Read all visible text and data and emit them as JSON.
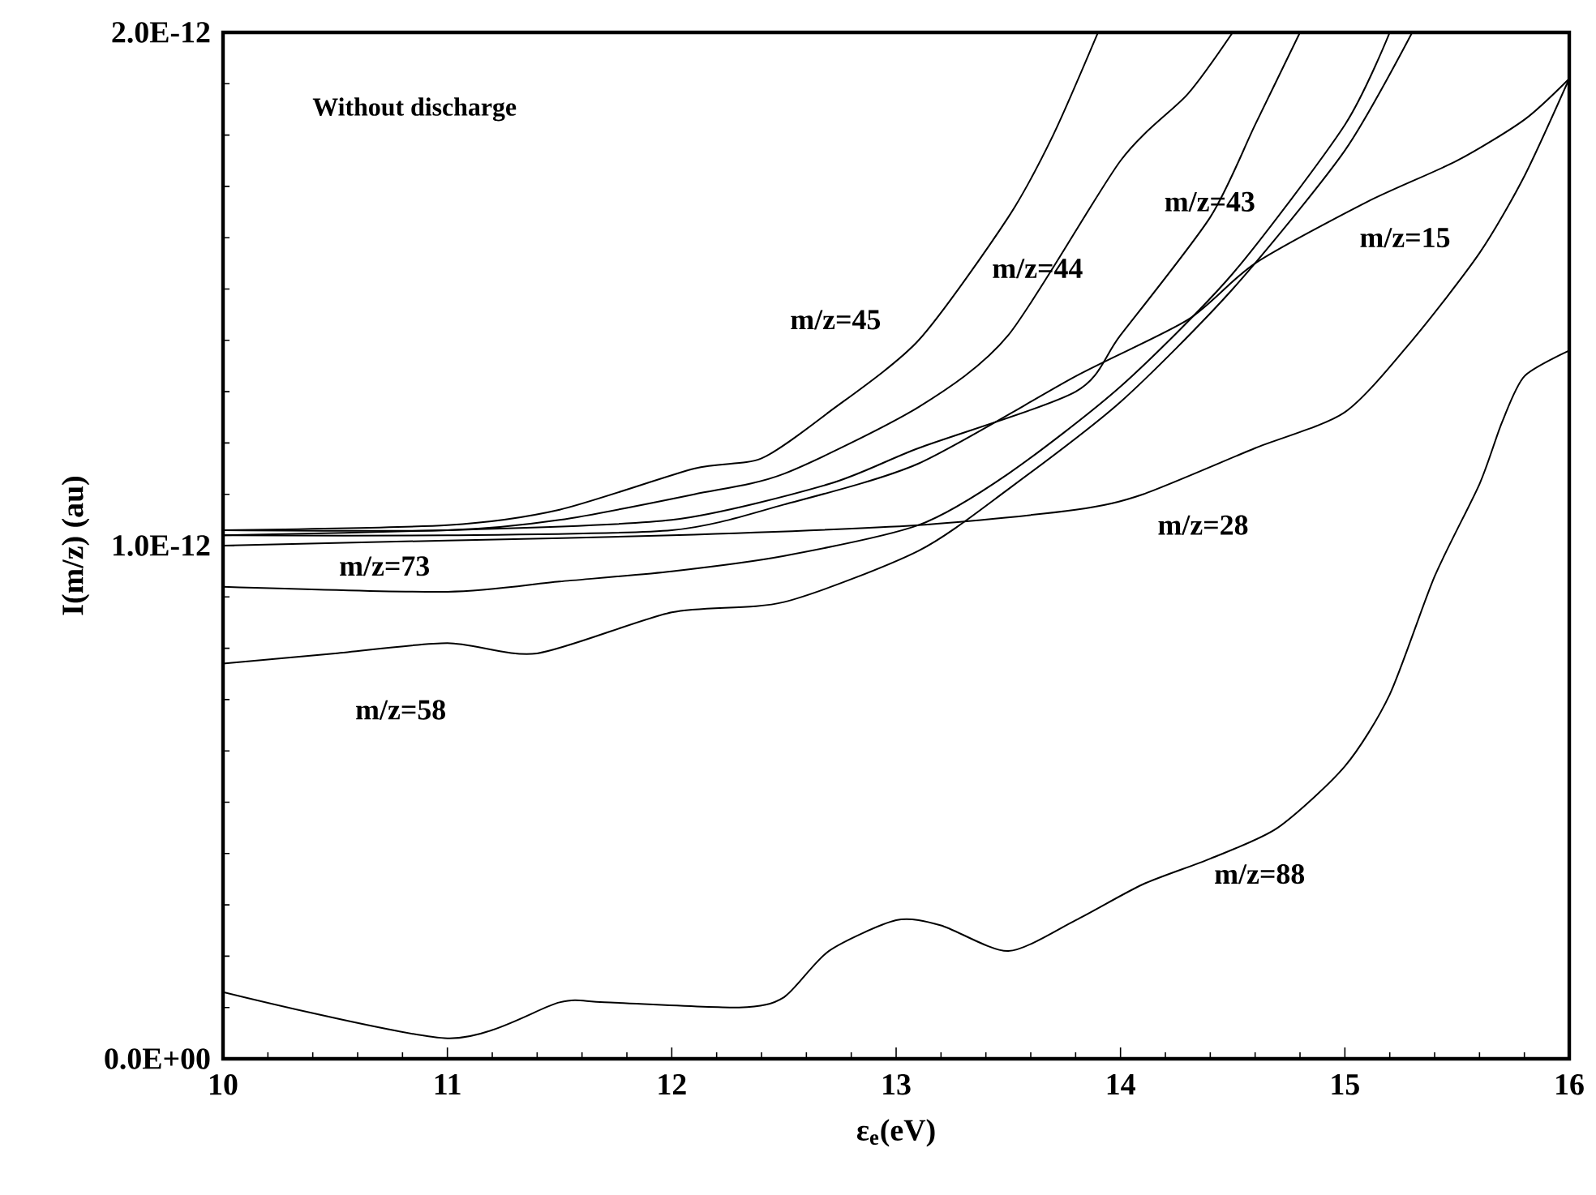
{
  "chart_data": {
    "type": "line",
    "xlabel": "ε$_{e}$(eV)",
    "ylabel": "I(m/z) (au)",
    "xlim": [
      10,
      16
    ],
    "ylim": [
      0,
      2e-12
    ],
    "xticks": [
      10,
      11,
      12,
      13,
      14,
      15,
      16,
      {
        "value": 10.2,
        "label": null
      },
      {
        "value": 10.4,
        "label": null
      },
      {
        "value": 10.6,
        "label": null
      },
      {
        "value": 10.8,
        "label": null
      },
      {
        "value": 11.2,
        "label": null
      },
      {
        "value": 11.4,
        "label": null
      },
      {
        "value": 11.6,
        "label": null
      },
      {
        "value": 11.8,
        "label": null
      },
      {
        "value": 12.2,
        "label": null
      },
      {
        "value": 12.4,
        "label": null
      },
      {
        "value": 12.6,
        "label": null
      },
      {
        "value": 12.8,
        "label": null
      },
      {
        "value": 13.2,
        "label": null
      },
      {
        "value": 13.4,
        "label": null
      },
      {
        "value": 13.6,
        "label": null
      },
      {
        "value": 13.8,
        "label": null
      },
      {
        "value": 14.2,
        "label": null
      },
      {
        "value": 14.4,
        "label": null
      },
      {
        "value": 14.6,
        "label": null
      },
      {
        "value": 14.8,
        "label": null
      },
      {
        "value": 15.2,
        "label": null
      },
      {
        "value": 15.4,
        "label": null
      },
      {
        "value": 15.6,
        "label": null
      },
      {
        "value": 15.8,
        "label": null
      }
    ],
    "yticks": [
      {
        "value": 0,
        "label": "0.0E+00"
      },
      {
        "value": 1e-12,
        "label": "1.0E-12"
      },
      {
        "value": 2e-12,
        "label": "2.0E-12"
      },
      {
        "value": 1e-13,
        "label": null
      },
      {
        "value": 2e-13,
        "label": null
      },
      {
        "value": 3e-13,
        "label": null
      },
      {
        "value": 4e-13,
        "label": null
      },
      {
        "value": 5e-13,
        "label": null
      },
      {
        "value": 6e-13,
        "label": null
      },
      {
        "value": 7e-13,
        "label": null
      },
      {
        "value": 8e-13,
        "label": null
      },
      {
        "value": 9e-13,
        "label": null
      },
      {
        "value": 1.1e-12,
        "label": null
      },
      {
        "value": 1.2e-12,
        "label": null
      },
      {
        "value": 1.3e-12,
        "label": null
      },
      {
        "value": 1.4e-12,
        "label": null
      },
      {
        "value": 1.5e-12,
        "label": null
      },
      {
        "value": 1.6e-12,
        "label": null
      },
      {
        "value": 1.7e-12,
        "label": null
      },
      {
        "value": 1.8e-12,
        "label": null
      },
      {
        "value": 1.9e-12,
        "label": null
      }
    ],
    "grid": false,
    "legend": false,
    "marker": "none",
    "line_style": "solid",
    "series": [
      {
        "name": "m/z=45",
        "color": "#000000",
        "x": [
          10,
          11,
          11.5,
          12.1,
          12.4,
          12.7,
          13.1,
          13.5,
          13.7,
          13.9
        ],
        "values": [
          1.03e-12,
          1.04e-12,
          1.07e-12,
          1.15e-12,
          1.17e-12,
          1.26e-12,
          1.4e-12,
          1.64e-12,
          1.8e-12,
          2e-12
        ]
      },
      {
        "name": "m/z=44",
        "color": "#000000",
        "x": [
          10,
          11,
          11.5,
          12.1,
          12.5,
          13.1,
          13.5,
          14,
          14.3,
          14.5
        ],
        "values": [
          1.03e-12,
          1.03e-12,
          1.05e-12,
          1.1e-12,
          1.14e-12,
          1.27e-12,
          1.41e-12,
          1.75e-12,
          1.88e-12,
          2e-12
        ]
      },
      {
        "name": "m/z=43",
        "color": "#000000",
        "x": [
          10,
          11,
          12,
          12.7,
          13.1,
          13.8,
          14,
          14.4,
          14.6,
          14.8
        ],
        "values": [
          1.02e-12,
          1.03e-12,
          1.05e-12,
          1.12e-12,
          1.19e-12,
          1.3e-12,
          1.41e-12,
          1.64e-12,
          1.82e-12,
          2e-12
        ]
      },
      {
        "name": "m/z=15",
        "color": "#000000",
        "x": [
          10,
          11,
          12,
          12.5,
          13.1,
          13.8,
          14.3,
          14.6,
          15.1,
          15.5,
          15.8,
          16
        ],
        "values": [
          1.02e-12,
          1.02e-12,
          1.03e-12,
          1.08e-12,
          1.16e-12,
          1.33e-12,
          1.44e-12,
          1.55e-12,
          1.67e-12,
          1.75e-12,
          1.83e-12,
          1.91e-12
        ]
      },
      {
        "name": "m/z=28",
        "color": "#000000",
        "x": [
          10,
          11,
          12,
          13.1,
          13.8,
          14.1,
          14.6,
          15,
          15.3,
          15.6,
          15.8,
          16
        ],
        "values": [
          1e-12,
          1.01e-12,
          1.02e-12,
          1.04e-12,
          1.07e-12,
          1.1e-12,
          1.19e-12,
          1.26e-12,
          1.4e-12,
          1.57e-12,
          1.72e-12,
          1.91e-12
        ]
      },
      {
        "name": "m/z=73",
        "color": "#000000",
        "x": [
          10,
          11,
          11.5,
          12,
          12.5,
          13.1,
          13.5,
          14,
          14.5,
          15,
          15.2
        ],
        "values": [
          9.2e-13,
          9.1e-13,
          9.3e-13,
          9.5e-13,
          9.8e-13,
          1.04e-12,
          1.14e-12,
          1.31e-12,
          1.53e-12,
          1.82e-12,
          2e-12
        ]
      },
      {
        "name": "m/z=58",
        "color": "#000000",
        "x": [
          10,
          10.5,
          11,
          11.4,
          12,
          12.5,
          13.1,
          13.5,
          14,
          14.5,
          15,
          15.3
        ],
        "values": [
          7.7e-13,
          7.9e-13,
          8.1e-13,
          7.9e-13,
          8.7e-13,
          8.9e-13,
          9.9e-13,
          1.11e-12,
          1.28e-12,
          1.5e-12,
          1.77e-12,
          2e-12
        ]
      },
      {
        "name": "m/z=88",
        "color": "#000000",
        "x": [
          10,
          11,
          11.5,
          11.7,
          12.3,
          12.5,
          12.7,
          13,
          13.2,
          13.5,
          13.8,
          14.1,
          14.4,
          14.7,
          15,
          15.2,
          15.4,
          15.6,
          15.7,
          15.8,
          16
        ],
        "values": [
          1.3e-13,
          4e-14,
          1.1e-13,
          1.1e-13,
          1e-13,
          1.2e-13,
          2.1e-13,
          2.7e-13,
          2.6e-13,
          2.1e-13,
          2.7e-13,
          3.4e-13,
          3.9e-13,
          4.5e-13,
          5.7e-13,
          7.1e-13,
          9.4e-13,
          1.12e-12,
          1.24e-12,
          1.33e-12,
          1.38e-12
        ]
      }
    ],
    "annotations": [
      "Without discharge"
    ]
  }
}
